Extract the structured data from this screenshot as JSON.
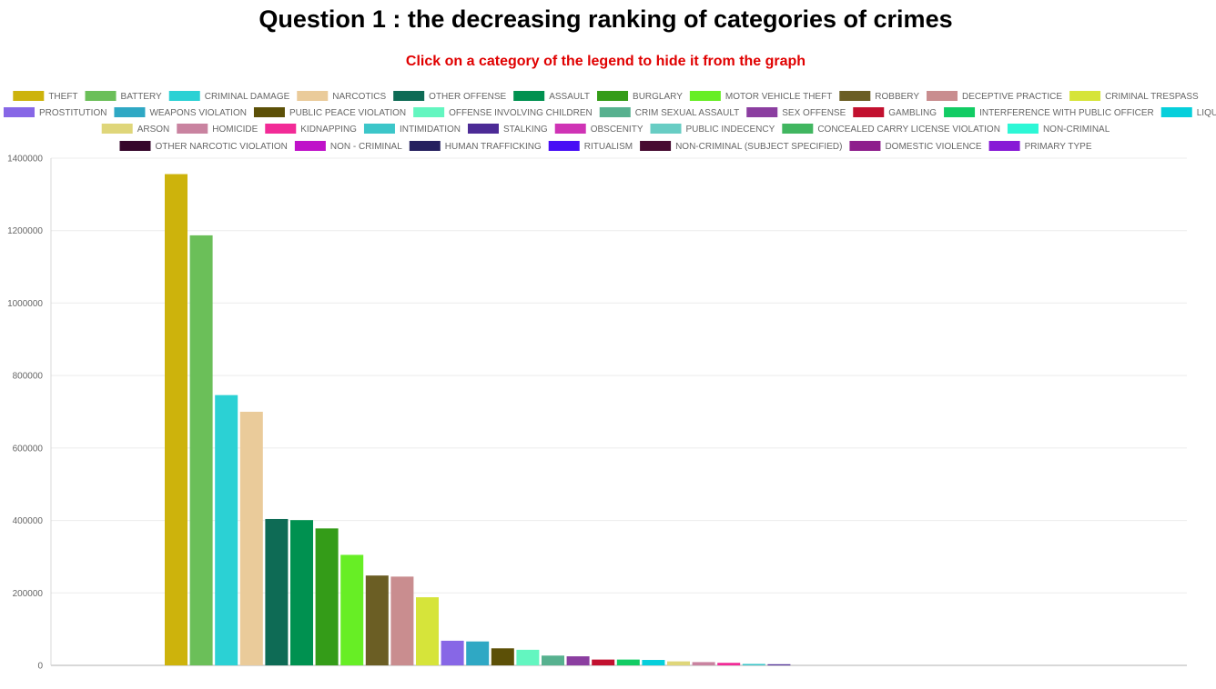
{
  "header": {
    "title": "Question 1 : the decreasing ranking of categories of crimes",
    "subtitle": "Click on a category of the legend to hide it from the graph"
  },
  "chart_data": {
    "type": "bar",
    "title": "Question 1 : the decreasing ranking of categories of crimes",
    "xlabel": "",
    "ylabel": "",
    "ylim": [
      0,
      1400000
    ],
    "yticks": [
      0,
      200000,
      400000,
      600000,
      800000,
      1000000,
      1200000,
      1400000
    ],
    "ytick_labels": [
      "0",
      "200000",
      "400000",
      "600000",
      "800000",
      "1000000",
      "1200000",
      "1400000"
    ],
    "grid": true,
    "legend_position": "top",
    "series": [
      {
        "name": "THEFT",
        "value": 1356000,
        "color": "#cdb30c"
      },
      {
        "name": "BATTERY",
        "value": 1187000,
        "color": "#6bbf59"
      },
      {
        "name": "CRIMINAL DAMAGE",
        "value": 746000,
        "color": "#2bd1d4"
      },
      {
        "name": "NARCOTICS",
        "value": 700000,
        "color": "#eacb9a"
      },
      {
        "name": "OTHER OFFENSE",
        "value": 404000,
        "color": "#0e6b55"
      },
      {
        "name": "ASSAULT",
        "value": 401000,
        "color": "#009150"
      },
      {
        "name": "BURGLARY",
        "value": 378000,
        "color": "#349c18"
      },
      {
        "name": "MOTOR VEHICLE THEFT",
        "value": 305000,
        "color": "#67ee25"
      },
      {
        "name": "ROBBERY",
        "value": 248000,
        "color": "#6b5e24"
      },
      {
        "name": "DECEPTIVE PRACTICE",
        "value": 245000,
        "color": "#c98d8f"
      },
      {
        "name": "CRIMINAL TRESPASS",
        "value": 188000,
        "color": "#d6e43a"
      },
      {
        "name": "PROSTITUTION",
        "value": 68000,
        "color": "#8767e6"
      },
      {
        "name": "WEAPONS VIOLATION",
        "value": 66000,
        "color": "#2fa8c4"
      },
      {
        "name": "PUBLIC PEACE VIOLATION",
        "value": 47000,
        "color": "#5c5007"
      },
      {
        "name": "OFFENSE INVOLVING CHILDREN",
        "value": 43000,
        "color": "#63f6c0"
      },
      {
        "name": "CRIM SEXUAL ASSAULT",
        "value": 27000,
        "color": "#57b18f"
      },
      {
        "name": "SEX OFFENSE",
        "value": 25000,
        "color": "#8b3ea0"
      },
      {
        "name": "GAMBLING",
        "value": 16000,
        "color": "#c2112f"
      },
      {
        "name": "INTERFERENCE WITH PUBLIC OFFICER",
        "value": 16000,
        "color": "#12cc64"
      },
      {
        "name": "LIQUOR LAW VIOLATION",
        "value": 15000,
        "color": "#06cfdb"
      },
      {
        "name": "ARSON",
        "value": 11000,
        "color": "#dfd67a"
      },
      {
        "name": "HOMICIDE",
        "value": 9000,
        "color": "#c983a0"
      },
      {
        "name": "KIDNAPPING",
        "value": 7000,
        "color": "#f22b97"
      },
      {
        "name": "INTIMIDATION",
        "value": 4000,
        "color": "#3cc6c9"
      },
      {
        "name": "STALKING",
        "value": 3000,
        "color": "#4c2b96"
      },
      {
        "name": "OBSCENITY",
        "value": 0,
        "color": "#cf33b5"
      },
      {
        "name": "PUBLIC INDECENCY",
        "value": 0,
        "color": "#68cdc4"
      },
      {
        "name": "CONCEALED CARRY LICENSE VIOLATION",
        "value": 0,
        "color": "#41b660"
      },
      {
        "name": "NON-CRIMINAL",
        "value": 0,
        "color": "#2df7d6"
      },
      {
        "name": "OTHER NARCOTIC VIOLATION",
        "value": 0,
        "color": "#36062b"
      },
      {
        "name": "NON - CRIMINAL",
        "value": 0,
        "color": "#bf12c9"
      },
      {
        "name": "HUMAN TRAFFICKING",
        "value": 0,
        "color": "#25205f"
      },
      {
        "name": "RITUALISM",
        "value": 0,
        "color": "#480ef5"
      },
      {
        "name": "NON-CRIMINAL (SUBJECT SPECIFIED)",
        "value": 0,
        "color": "#470b31"
      },
      {
        "name": "DOMESTIC VIOLENCE",
        "value": 0,
        "color": "#8e1e8c"
      },
      {
        "name": "PRIMARY TYPE",
        "value": 0,
        "color": "#8719d6"
      }
    ]
  }
}
